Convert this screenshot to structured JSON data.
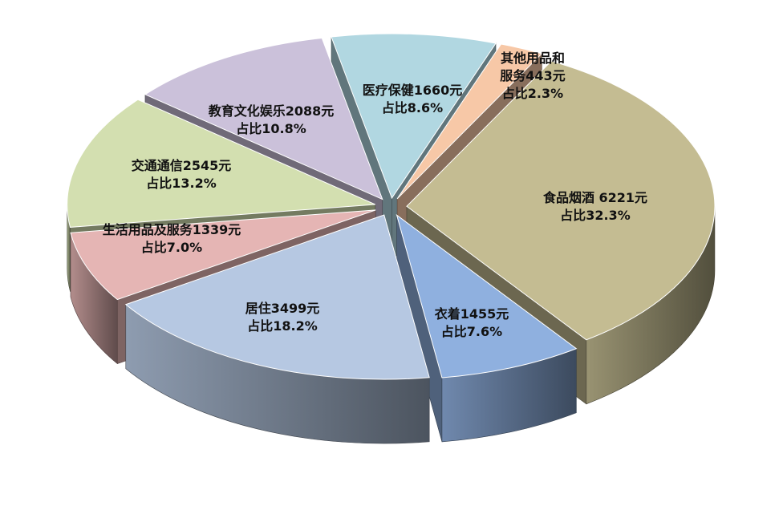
{
  "chart_data": {
    "type": "pie",
    "style": "3d-exploded",
    "title": "",
    "legend": "none",
    "slices": [
      {
        "name": "食品烟酒",
        "amount_label": "6221元",
        "value": 6221,
        "percent": 32.3,
        "percent_label": "占比32.3%",
        "color": "#c4bc92",
        "label_lines": [
          "食品烟酒 6221元",
          "占比32.3%"
        ]
      },
      {
        "name": "衣着",
        "amount_label": "1455元",
        "value": 1455,
        "percent": 7.6,
        "percent_label": "占比7.6%",
        "color": "#8fb0df",
        "label_lines": [
          "衣着1455元",
          "占比7.6%"
        ]
      },
      {
        "name": "居住",
        "amount_label": "3499元",
        "value": 3499,
        "percent": 18.2,
        "percent_label": "占比18.2%",
        "color": "#b6c8e2",
        "label_lines": [
          "居住3499元",
          "占比18.2%"
        ]
      },
      {
        "name": "生活用品及服务",
        "amount_label": "1339元",
        "value": 1339,
        "percent": 7.0,
        "percent_label": "占比7.0%",
        "color": "#e5b5b4",
        "label_lines": [
          "生活用品及服务1339元",
          "占比7.0%"
        ]
      },
      {
        "name": "交通通信",
        "amount_label": "2545元",
        "value": 2545,
        "percent": 13.2,
        "percent_label": "占比13.2%",
        "color": "#d3dfb0",
        "label_lines": [
          "交通通信2545元",
          "占比13.2%"
        ]
      },
      {
        "name": "教育文化娱乐",
        "amount_label": "2088元",
        "value": 2088,
        "percent": 10.8,
        "percent_label": "占比10.8%",
        "color": "#cbc1da",
        "label_lines": [
          "教育文化娱乐2088元",
          "占比10.8%"
        ]
      },
      {
        "name": "医疗保健",
        "amount_label": "1660元",
        "value": 1660,
        "percent": 8.6,
        "percent_label": "占比8.6%",
        "color": "#b1d7e1",
        "label_lines": [
          "医疗保健1660元",
          "占比8.6%"
        ]
      },
      {
        "name": "其他用品和服务",
        "amount_label": "443元",
        "value": 443,
        "percent": 2.3,
        "percent_label": "占比2.3%",
        "color": "#f7c8a7",
        "label_lines": [
          "其他用品和",
          "服务443元",
          "占比2.3%"
        ]
      }
    ]
  }
}
